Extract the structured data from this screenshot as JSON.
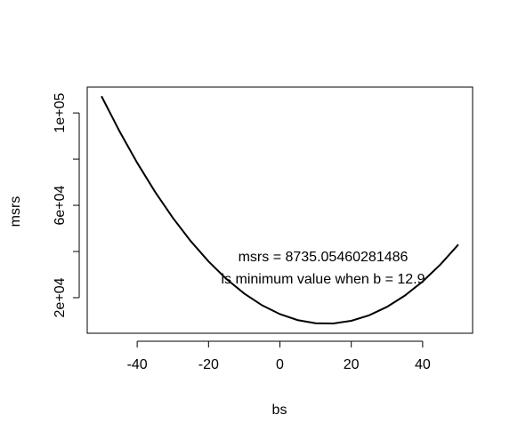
{
  "chart_data": {
    "type": "line",
    "x_label": "bs",
    "y_label": "msrs",
    "x": [
      -50,
      -45,
      -40,
      -35,
      -30,
      -25,
      -20,
      -15,
      -10,
      -5,
      0,
      5,
      10,
      15,
      20,
      25,
      30,
      35,
      40,
      45,
      50
    ],
    "series": [
      {
        "color": "#000000",
        "values": [
          107250,
          92210,
          78415,
          65866,
          54561,
          44501,
          35687,
          28117,
          21793,
          16713,
          12878,
          10289,
          8944,
          8845,
          9990,
          12380,
          16016,
          20896,
          27022,
          34392,
          43007
        ]
      }
    ],
    "xlim": [
      -54,
      54
    ],
    "xticks": [
      -40,
      -20,
      0,
      20,
      40
    ],
    "ylim": [
      4600,
      111200
    ],
    "yticks": [
      {
        "value": 20000,
        "label": "2e+04"
      },
      {
        "value": 40000,
        "label": null
      },
      {
        "value": 60000,
        "label": "6e+04"
      },
      {
        "value": 80000,
        "label": null
      },
      {
        "value": 100000,
        "label": "1e+05"
      }
    ],
    "annotations": [
      {
        "text": "msrs =  8735.05460281486",
        "color": "#ff0000"
      },
      {
        "text": "is minimum value when b =  12.9",
        "color": "#ff0000"
      }
    ]
  }
}
